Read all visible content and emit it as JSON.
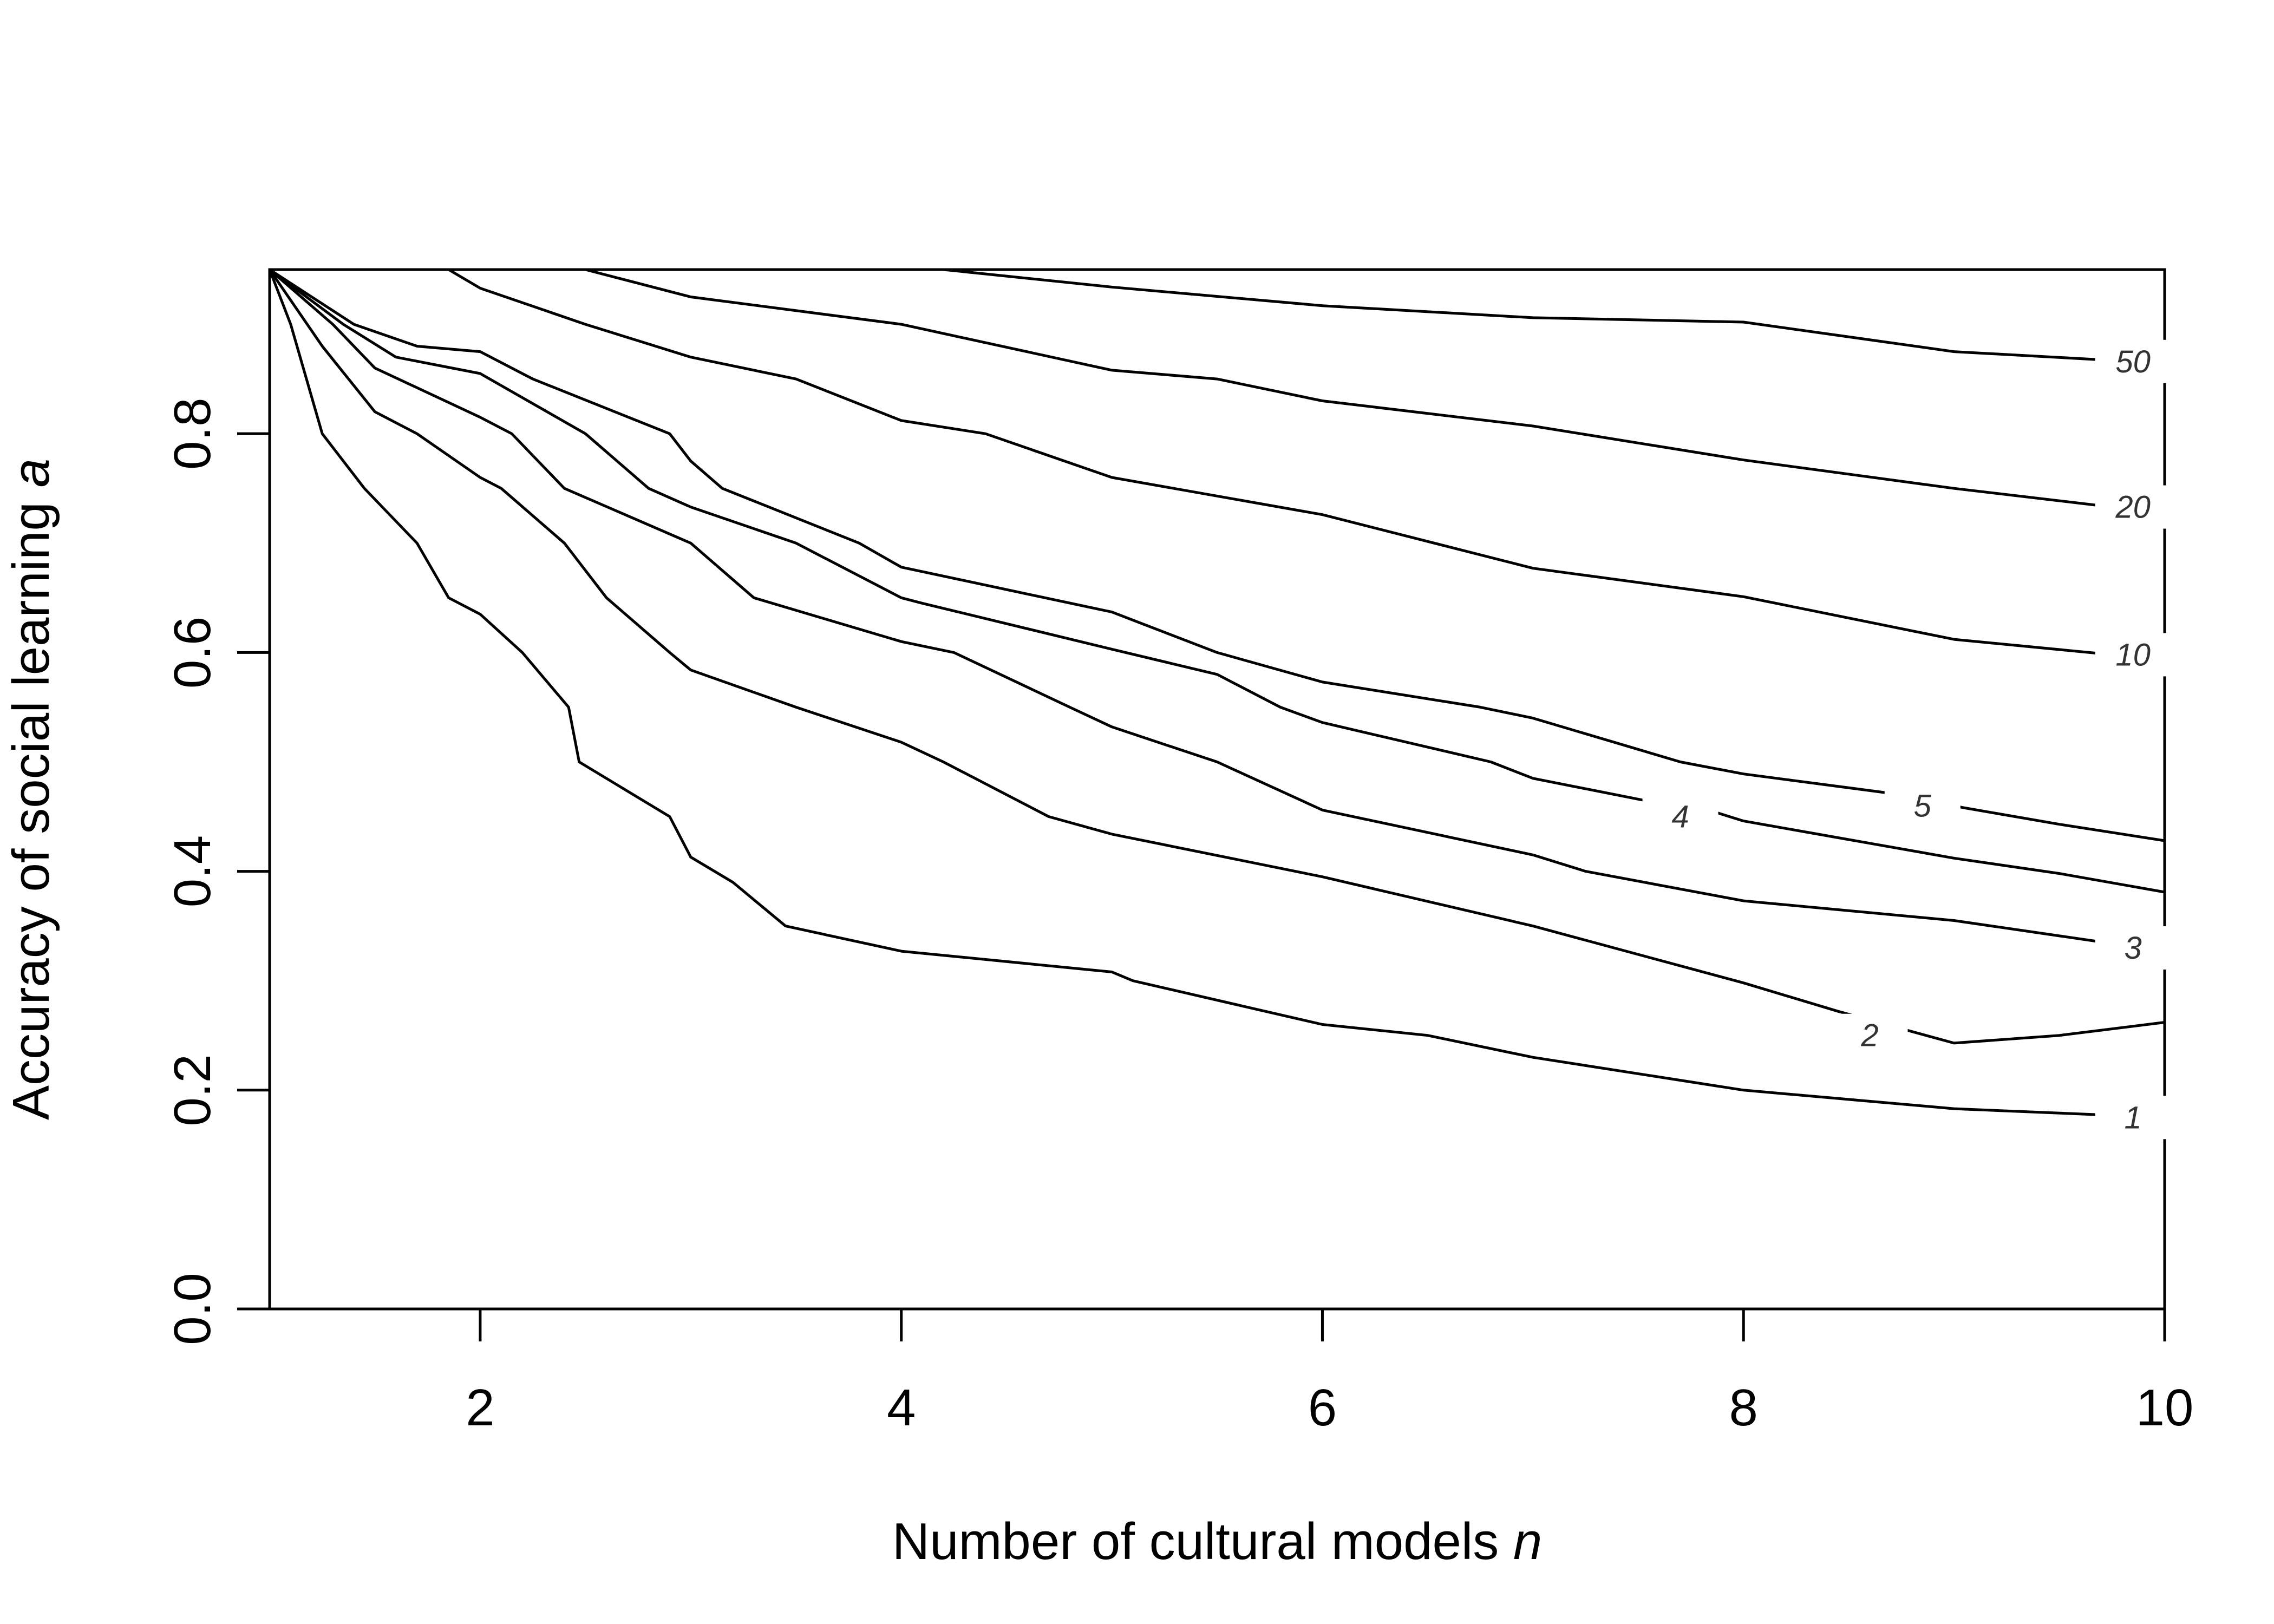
{
  "chart_data": {
    "type": "line",
    "title": "",
    "xlabel": "Number of cultural models",
    "xlabel_var": "n",
    "ylabel": "Accuracy of social learning",
    "ylabel_var": "a",
    "xlim": [
      1,
      10
    ],
    "ylim": [
      0,
      0.95
    ],
    "x_ticks": [
      2,
      4,
      6,
      8,
      10
    ],
    "y_ticks": [
      0.0,
      0.2,
      0.4,
      0.6,
      0.8
    ],
    "x_tick_labels": [
      "2",
      "4",
      "6",
      "8",
      "10"
    ],
    "y_tick_labels": [
      "0.0",
      "0.2",
      "0.4",
      "0.6",
      "0.8"
    ],
    "grid": false,
    "legend": "none",
    "series": [
      {
        "label": "1",
        "label_at": [
          9.85,
          0.175
        ],
        "points": [
          [
            1,
            0.95
          ],
          [
            1.1,
            0.9
          ],
          [
            1.25,
            0.8
          ],
          [
            1.45,
            0.75
          ],
          [
            1.7,
            0.7
          ],
          [
            1.85,
            0.65
          ],
          [
            2,
            0.635
          ],
          [
            2.2,
            0.6
          ],
          [
            2.42,
            0.55
          ],
          [
            2.47,
            0.5
          ],
          [
            2.9,
            0.45
          ],
          [
            3.0,
            0.413
          ],
          [
            3.2,
            0.39
          ],
          [
            3.45,
            0.35
          ],
          [
            4,
            0.327
          ],
          [
            5,
            0.308
          ],
          [
            5.1,
            0.3
          ],
          [
            6,
            0.26
          ],
          [
            6.5,
            0.25
          ],
          [
            7,
            0.23
          ],
          [
            8,
            0.2
          ],
          [
            9,
            0.183
          ],
          [
            9.75,
            0.177
          ]
        ]
      },
      {
        "label": "2",
        "label_at": [
          8.6,
          0.25
        ],
        "points": [
          [
            1,
            0.95
          ],
          [
            1.25,
            0.88
          ],
          [
            1.5,
            0.82
          ],
          [
            1.7,
            0.8
          ],
          [
            2,
            0.76
          ],
          [
            2.1,
            0.75
          ],
          [
            2.4,
            0.7
          ],
          [
            2.6,
            0.65
          ],
          [
            2.9,
            0.6
          ],
          [
            3,
            0.584
          ],
          [
            3.5,
            0.55
          ],
          [
            4,
            0.518
          ],
          [
            4.2,
            0.5
          ],
          [
            4.7,
            0.45
          ],
          [
            5,
            0.434
          ],
          [
            6,
            0.395
          ],
          [
            7,
            0.35
          ],
          [
            8,
            0.298
          ],
          [
            8.45,
            0.272
          ],
          [
            9,
            0.243
          ],
          [
            9.5,
            0.25
          ],
          [
            10,
            0.262
          ]
        ]
      },
      {
        "label": "3",
        "label_at": [
          9.85,
          0.33
        ],
        "points": [
          [
            1,
            0.95
          ],
          [
            1.3,
            0.9
          ],
          [
            1.5,
            0.86
          ],
          [
            2,
            0.815
          ],
          [
            2.15,
            0.8
          ],
          [
            2.4,
            0.75
          ],
          [
            3,
            0.7
          ],
          [
            3.3,
            0.65
          ],
          [
            4,
            0.61
          ],
          [
            4.25,
            0.6
          ],
          [
            4.8,
            0.55
          ],
          [
            5,
            0.532
          ],
          [
            5.5,
            0.5
          ],
          [
            6,
            0.456
          ],
          [
            7,
            0.415
          ],
          [
            7.25,
            0.4
          ],
          [
            8,
            0.373
          ],
          [
            9,
            0.355
          ],
          [
            9.75,
            0.334
          ]
        ]
      },
      {
        "label": "4",
        "label_at": [
          7.7,
          0.45
        ],
        "points": [
          [
            1,
            0.95
          ],
          [
            1.35,
            0.9
          ],
          [
            1.6,
            0.87
          ],
          [
            2,
            0.855
          ],
          [
            2.5,
            0.8
          ],
          [
            2.8,
            0.75
          ],
          [
            3,
            0.733
          ],
          [
            3.5,
            0.7
          ],
          [
            4,
            0.65
          ],
          [
            4.1,
            0.645
          ],
          [
            5,
            0.603
          ],
          [
            5.5,
            0.58
          ],
          [
            5.8,
            0.55
          ],
          [
            6,
            0.536
          ],
          [
            6.8,
            0.5
          ],
          [
            7,
            0.485
          ],
          [
            7.55,
            0.464
          ],
          [
            7.85,
            0.455
          ],
          [
            8,
            0.446
          ],
          [
            9,
            0.412
          ],
          [
            9.5,
            0.398
          ],
          [
            10,
            0.381
          ]
        ]
      },
      {
        "label": "5",
        "label_at": [
          8.85,
          0.46
        ],
        "points": [
          [
            1,
            0.95
          ],
          [
            1.4,
            0.9
          ],
          [
            1.7,
            0.88
          ],
          [
            2,
            0.875
          ],
          [
            2.25,
            0.85
          ],
          [
            2.9,
            0.8
          ],
          [
            3,
            0.775
          ],
          [
            3.15,
            0.75
          ],
          [
            3.8,
            0.7
          ],
          [
            4,
            0.678
          ],
          [
            5,
            0.637
          ],
          [
            5.5,
            0.6
          ],
          [
            6,
            0.573
          ],
          [
            6.75,
            0.55
          ],
          [
            7,
            0.54
          ],
          [
            7.7,
            0.5
          ],
          [
            8,
            0.489
          ],
          [
            8.75,
            0.47
          ],
          [
            9.05,
            0.458
          ],
          [
            9.5,
            0.443
          ],
          [
            10,
            0.428
          ]
        ]
      },
      {
        "label": "10",
        "label_at": [
          9.85,
          0.598
        ],
        "points": [
          [
            1,
            0.95
          ],
          [
            1.85,
            0.95
          ],
          [
            2,
            0.933
          ],
          [
            2.5,
            0.9
          ],
          [
            3,
            0.87
          ],
          [
            3.5,
            0.85
          ],
          [
            4,
            0.812
          ],
          [
            4.4,
            0.8
          ],
          [
            5,
            0.76
          ],
          [
            6,
            0.726
          ],
          [
            7,
            0.677
          ],
          [
            8,
            0.651
          ],
          [
            9,
            0.612
          ],
          [
            9.75,
            0.598
          ]
        ]
      },
      {
        "label": "20",
        "label_at": [
          9.85,
          0.733
        ],
        "points": [
          [
            1,
            0.95
          ],
          [
            2.5,
            0.95
          ],
          [
            3,
            0.925
          ],
          [
            4,
            0.9
          ],
          [
            5,
            0.858
          ],
          [
            5.5,
            0.85
          ],
          [
            6,
            0.83
          ],
          [
            7,
            0.807
          ],
          [
            8,
            0.776
          ],
          [
            9,
            0.75
          ],
          [
            9.75,
            0.733
          ]
        ]
      },
      {
        "label": "50",
        "label_at": [
          9.85,
          0.866
        ],
        "points": [
          [
            1,
            0.95
          ],
          [
            4.2,
            0.95
          ],
          [
            5,
            0.934
          ],
          [
            6,
            0.917
          ],
          [
            7,
            0.906
          ],
          [
            8,
            0.902
          ],
          [
            9,
            0.875
          ],
          [
            9.75,
            0.867
          ]
        ]
      }
    ]
  }
}
